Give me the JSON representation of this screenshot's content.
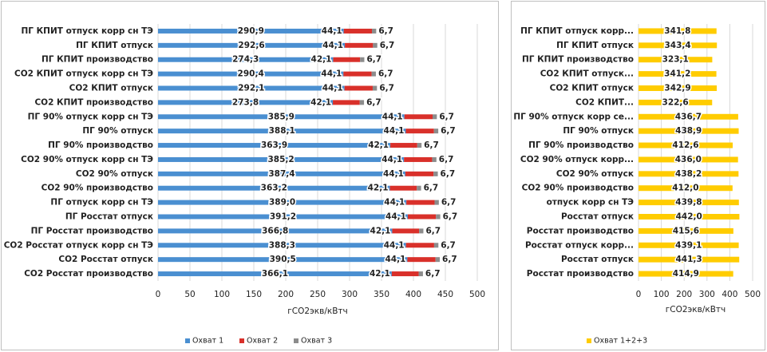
{
  "chart_data": [
    {
      "type": "bar",
      "orientation": "horizontal",
      "stacked": true,
      "grid": true,
      "xlabel": "гСО2экв/кВтч",
      "categories": [
        "ПГ КПИТ отпуск корр сн ТЭ",
        "ПГ КПИТ отпуск",
        "ПГ КПИТ производство",
        "CO2 КПИТ отпуск корр сн ТЭ",
        "CO2 КПИТ отпуск",
        "CO2 КПИТ производство",
        "ПГ 90% отпуск корр сн ТЭ",
        "ПГ 90% отпуск",
        "ПГ 90% производство",
        "CO2  90% отпуск корр сн ТЭ",
        "CO2  90%  отпуск",
        "CO2 90% производство",
        "ПГ отпуск корр сн ТЭ",
        "ПГ Росстат отпуск",
        "ПГ Росстат производство",
        "CO2 Росстат отпуск корр сн ТЭ",
        "CO2 Росстат отпуск",
        "CO2 Росстат производство"
      ],
      "series": [
        {
          "name": "Охват 1",
          "color": "#4a8fd1",
          "values": [
            290.9,
            292.6,
            274.3,
            290.4,
            292.1,
            273.8,
            385.9,
            388.1,
            363.9,
            385.2,
            387.4,
            363.2,
            389.0,
            391.2,
            366.8,
            388.3,
            390.5,
            366.1
          ],
          "value_labels": [
            "290,9",
            "292,6",
            "274,3",
            "290,4",
            "292,1",
            "273,8",
            "385,9",
            "388,1",
            "363,9",
            "385,2",
            "387,4",
            "363,2",
            "389,0",
            "391,2",
            "366,8",
            "388,3",
            "390,5",
            "366,1"
          ]
        },
        {
          "name": "Охват 2",
          "color": "#d9302a",
          "values": [
            44.1,
            44.1,
            42.1,
            44.1,
            44.1,
            42.1,
            44.1,
            44.1,
            42.1,
            44.1,
            44.1,
            42.1,
            44.1,
            44.1,
            42.1,
            44.1,
            44.1,
            42.1
          ],
          "value_labels": [
            "44,1",
            "44,1",
            "42,1",
            "44,1",
            "44,1",
            "42,1",
            "44,1",
            "44,1",
            "42,1",
            "44,1",
            "44,1",
            "42,1",
            "44,1",
            "44,1",
            "42,1",
            "44,1",
            "44,1",
            "42,1"
          ]
        },
        {
          "name": "Охват 3",
          "color": "#8c8c8c",
          "values": [
            6.7,
            6.7,
            6.7,
            6.7,
            6.7,
            6.7,
            6.7,
            6.7,
            6.7,
            6.7,
            6.7,
            6.7,
            6.7,
            6.7,
            6.7,
            6.7,
            6.7,
            6.7
          ],
          "value_labels": [
            "6,7",
            "6,7",
            "6,7",
            "6,7",
            "6,7",
            "6,7",
            "6,7",
            "6,7",
            "6,7",
            "6,7",
            "6,7",
            "6,7",
            "6,7",
            "6,7",
            "6,7",
            "6,7",
            "6,7",
            "6,7"
          ]
        }
      ],
      "xlim": [
        0,
        500
      ],
      "xticks": [
        0,
        50,
        100,
        150,
        200,
        250,
        300,
        350,
        400,
        450,
        500
      ]
    },
    {
      "type": "bar",
      "orientation": "horizontal",
      "stacked": false,
      "grid": true,
      "xlabel": "гСО2экв/кВтч",
      "categories": [
        "ПГ КПИТ отпуск корр...",
        "ПГ КПИТ отпуск",
        "ПГ КПИТ производство",
        "СО2 КПИТ отпуск...",
        "СО2 КПИТ отпуск",
        "СО2 КПИТ...",
        "ПГ 90% отпуск корр се...",
        "ПГ 90% отпуск",
        "ПГ 90% производство",
        "СО2 90% отпуск корр...",
        "СО2 90% отпуск",
        "СО2 90% производство",
        "отпуск корр сн ТЭ",
        "Росстат отпуск",
        "Росстат производство",
        "Росстат отпуск корр...",
        "Росстат отпуск",
        "Росстат производство"
      ],
      "series": [
        {
          "name": "Охват 1+2+3",
          "color": "#ffcc00",
          "values": [
            341.8,
            343.4,
            323.1,
            341.2,
            342.9,
            322.6,
            436.7,
            438.9,
            412.6,
            436.0,
            438.2,
            412.0,
            439.8,
            442.0,
            415.6,
            439.1,
            441.3,
            414.9
          ],
          "value_labels": [
            "341,8",
            "343,4",
            "323,1",
            "341,2",
            "342,9",
            "322,6",
            "436,7",
            "438,9",
            "412,6",
            "436,0",
            "438,2",
            "412,0",
            "439,8",
            "442,0",
            "415,6",
            "439,1",
            "441,3",
            "414,9"
          ]
        }
      ],
      "xlim": [
        0,
        500
      ],
      "xticks": [
        0,
        100,
        200,
        300,
        400,
        500
      ]
    }
  ]
}
